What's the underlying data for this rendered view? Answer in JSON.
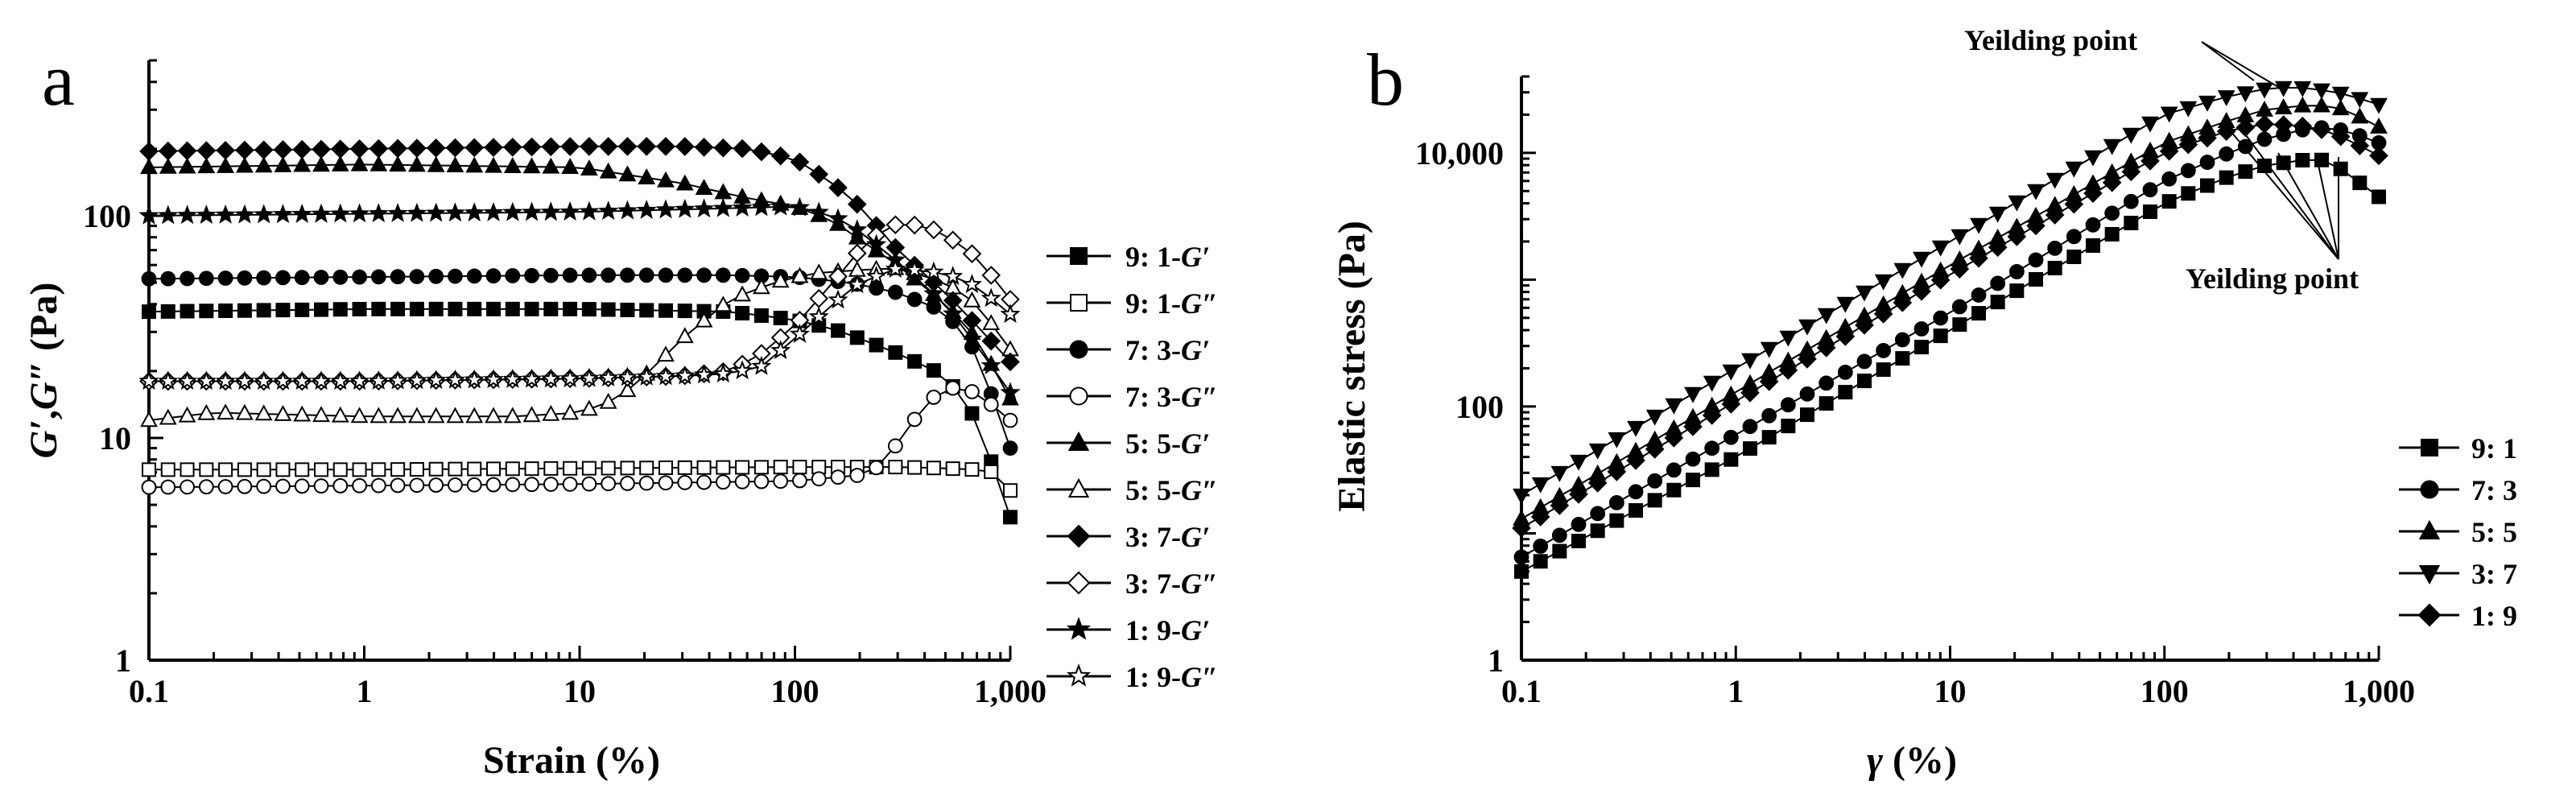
{
  "chart_data": [
    {
      "panel": "a",
      "type": "scatter",
      "x_scale": "log",
      "y_scale": "log",
      "xlabel": "Strain (%)",
      "ylabel": "G′,G″ (Pa)",
      "xlim": [
        0.1,
        1000
      ],
      "ylim": [
        1,
        500
      ],
      "x_ticks": [
        "0.1",
        "1",
        "10",
        "100",
        "1,000"
      ],
      "y_ticks": [
        "1",
        "10",
        "100"
      ],
      "grid": false,
      "legend_position": "right",
      "series": [
        {
          "name": "9: 1-G′",
          "label": "9: 1-",
          "mod": "G′",
          "marker": "square",
          "filled": true,
          "x": [
            0.1,
            1,
            10,
            50,
            100,
            150,
            200,
            300,
            500,
            700,
            1000
          ],
          "y": [
            37,
            38,
            38,
            37,
            34,
            31,
            28,
            24,
            19,
            12,
            4.4
          ]
        },
        {
          "name": "9: 1-G″",
          "label": "9: 1-",
          "mod": "G″",
          "marker": "square",
          "filled": false,
          "x": [
            0.1,
            1,
            10,
            100,
            200,
            300,
            500,
            700,
            850,
            1000
          ],
          "y": [
            7.2,
            7.2,
            7.3,
            7.4,
            7.4,
            7.4,
            7.3,
            7.2,
            7.0,
            5.8
          ]
        },
        {
          "name": "7: 3-G′",
          "label": "7: 3-",
          "mod": "G′",
          "marker": "circle",
          "filled": true,
          "x": [
            0.1,
            1,
            10,
            50,
            100,
            150,
            200,
            300,
            500,
            700,
            1000
          ],
          "y": [
            52,
            53,
            54,
            54,
            53,
            51,
            49,
            45,
            37,
            24,
            9
          ]
        },
        {
          "name": "7: 3-G″",
          "label": "7: 3-",
          "mod": "G″",
          "marker": "circle",
          "filled": false,
          "x": [
            0.1,
            1,
            10,
            100,
            200,
            250,
            300,
            400,
            500,
            700,
            1000
          ],
          "y": [
            6.0,
            6.1,
            6.2,
            6.4,
            6.8,
            7.5,
            9.5,
            14,
            17,
            16,
            12
          ]
        },
        {
          "name": "5: 5-G′",
          "label": "5: 5-",
          "mod": "G′",
          "marker": "triangle-up",
          "filled": true,
          "x": [
            0.1,
            1,
            10,
            30,
            60,
            100,
            150,
            200,
            300,
            500,
            700,
            1000
          ],
          "y": [
            165,
            170,
            165,
            140,
            120,
            110,
            95,
            78,
            60,
            40,
            28,
            15
          ]
        },
        {
          "name": "5: 5-G″",
          "label": "5: 5-",
          "mod": "G″",
          "marker": "triangle-up",
          "filled": false,
          "x": [
            0.1,
            0.2,
            1,
            5,
            10,
            15,
            20,
            30,
            50,
            80,
            120,
            200,
            300,
            500,
            700,
            1000
          ],
          "y": [
            12,
            13,
            12.5,
            12.5,
            13,
            15,
            19,
            28,
            42,
            50,
            55,
            57,
            58,
            50,
            40,
            25
          ]
        },
        {
          "name": "3: 7-G′",
          "label": "3: 7-",
          "mod": "G′",
          "marker": "diamond",
          "filled": true,
          "x": [
            0.1,
            1,
            10,
            30,
            60,
            100,
            150,
            200,
            300,
            500,
            700,
            1000
          ],
          "y": [
            195,
            200,
            205,
            205,
            200,
            180,
            140,
            110,
            70,
            45,
            32,
            22
          ]
        },
        {
          "name": "3: 7-G″",
          "label": "3: 7-",
          "mod": "G″",
          "marker": "diamond",
          "filled": false,
          "x": [
            0.1,
            1,
            10,
            30,
            50,
            70,
            100,
            150,
            200,
            250,
            300,
            400,
            500,
            700,
            1000
          ],
          "y": [
            18,
            18,
            18.5,
            19,
            20,
            24,
            32,
            50,
            70,
            85,
            92,
            90,
            82,
            65,
            42
          ]
        },
        {
          "name": "1: 9-G′",
          "label": "1: 9-",
          "mod": "G′",
          "marker": "star",
          "filled": true,
          "x": [
            0.1,
            1,
            10,
            50,
            100,
            150,
            200,
            300,
            500,
            700,
            1000
          ],
          "y": [
            100,
            102,
            104,
            108,
            110,
            100,
            85,
            62,
            40,
            26,
            16
          ]
        },
        {
          "name": "1: 9-G″",
          "label": "1: 9-",
          "mod": "G″",
          "marker": "star",
          "filled": false,
          "x": [
            0.1,
            1,
            10,
            30,
            50,
            70,
            100,
            150,
            200,
            300,
            500,
            700,
            1000
          ],
          "y": [
            18,
            18,
            18.5,
            19,
            19.5,
            21,
            28,
            40,
            50,
            58,
            55,
            48,
            36
          ]
        }
      ]
    },
    {
      "panel": "b",
      "type": "scatter",
      "x_scale": "log",
      "y_scale": "log",
      "xlabel": "γ (%)",
      "ylabel": "Elastic stress (Pa)",
      "xlim": [
        0.1,
        1000
      ],
      "ylim": [
        1,
        40000
      ],
      "x_ticks": [
        "0.1",
        "1",
        "10",
        "100",
        "1,000"
      ],
      "y_ticks": [
        "1",
        "100",
        "10,000"
      ],
      "grid": false,
      "legend_position": "bottom-right",
      "annotations": [
        "Yeilding point",
        "Yeilding point"
      ],
      "series": [
        {
          "name": "9: 1",
          "marker": "square",
          "filled": true,
          "x": [
            0.1,
            1,
            10,
            100,
            200,
            300,
            500,
            600,
            700,
            1000
          ],
          "y": [
            5,
            40,
            400,
            4000,
            6500,
            8000,
            9000,
            8500,
            7000,
            4500
          ]
        },
        {
          "name": "7: 3",
          "marker": "circle",
          "filled": true,
          "x": [
            0.1,
            1,
            10,
            100,
            200,
            300,
            500,
            700,
            1000
          ],
          "y": [
            6.5,
            60,
            550,
            6000,
            10000,
            13000,
            16000,
            15000,
            12000
          ]
        },
        {
          "name": "5: 5",
          "marker": "triangle-up",
          "filled": true,
          "x": [
            0.1,
            1,
            10,
            100,
            200,
            300,
            500,
            700,
            1000
          ],
          "y": [
            13,
            130,
            1300,
            12000,
            18000,
            22000,
            24000,
            22000,
            16000
          ]
        },
        {
          "name": "3: 7",
          "marker": "triangle-down",
          "filled": true,
          "x": [
            0.1,
            1,
            10,
            100,
            200,
            300,
            400,
            500,
            700,
            1000
          ],
          "y": [
            20,
            200,
            2000,
            20000,
            28000,
            32000,
            33000,
            32000,
            29000,
            24000
          ]
        },
        {
          "name": "1: 9",
          "marker": "diamond",
          "filled": true,
          "x": [
            0.1,
            1,
            10,
            100,
            200,
            300,
            500,
            700,
            1000
          ],
          "y": [
            11,
            110,
            1100,
            10000,
            15000,
            17000,
            16000,
            13000,
            9500
          ]
        }
      ]
    }
  ],
  "labels": {
    "panel_a": "a",
    "panel_b": "b"
  }
}
